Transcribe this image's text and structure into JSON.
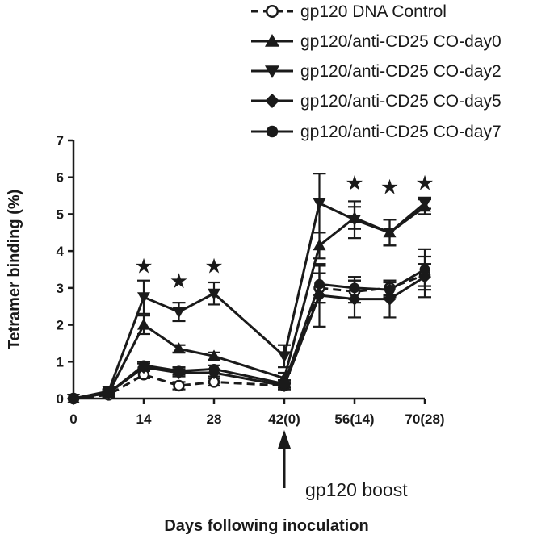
{
  "chart_data": {
    "type": "line",
    "title": "",
    "xlabel": "Days following inoculation",
    "ylabel": "Tetramer binding (%)",
    "xlim": [
      0,
      70
    ],
    "ylim": [
      0,
      7
    ],
    "x_ticks": [
      0,
      14,
      28,
      42,
      56,
      70
    ],
    "x_tick_labels": [
      "0",
      "14",
      "28",
      "42(0)",
      "56(14)",
      "70(28)"
    ],
    "y_ticks": [
      0,
      1,
      2,
      3,
      4,
      5,
      6,
      7
    ],
    "y_tick_labels": [
      "0",
      "1",
      "2",
      "3",
      "4",
      "5",
      "6",
      "7"
    ],
    "grid": false,
    "legend_position": "top-right",
    "series": [
      {
        "name": "gp120 DNA Control",
        "marker": "circle-open",
        "dashed": true,
        "x": [
          0,
          7,
          14,
          21,
          28,
          42,
          49,
          56,
          63,
          70
        ],
        "y": [
          0,
          0.1,
          0.65,
          0.35,
          0.45,
          0.35,
          3.0,
          2.9,
          3.0,
          3.35
        ],
        "err": [
          0,
          0.05,
          0.1,
          0.1,
          0.1,
          0.1,
          0.4,
          0.3,
          0.2,
          0.3
        ]
      },
      {
        "name": "gp120/anti-CD25 CO-day0",
        "marker": "triangle-up",
        "dashed": false,
        "x": [
          0,
          7,
          14,
          21,
          28,
          42,
          49,
          56,
          63,
          70
        ],
        "y": [
          0,
          0.15,
          2.0,
          1.35,
          1.15,
          0.55,
          4.15,
          4.9,
          4.5,
          5.2
        ],
        "err": [
          0,
          0.05,
          0.25,
          0.1,
          0.1,
          0.15,
          0.35,
          0.3,
          0.35,
          0.2
        ]
      },
      {
        "name": "gp120/anti-CD25 CO-day2",
        "marker": "triangle-down",
        "dashed": false,
        "x": [
          0,
          7,
          14,
          21,
          28,
          42,
          49,
          56,
          63,
          70
        ],
        "y": [
          0,
          0.2,
          2.75,
          2.35,
          2.85,
          1.15,
          5.3,
          4.85,
          4.5,
          5.3
        ],
        "err": [
          0,
          0.05,
          0.45,
          0.25,
          0.3,
          0.3,
          0.8,
          0.5,
          0.35,
          0.15
        ]
      },
      {
        "name": "gp120/anti-CD25 CO-day5",
        "marker": "diamond",
        "dashed": false,
        "x": [
          0,
          7,
          14,
          21,
          28,
          42,
          49,
          56,
          63,
          70
        ],
        "y": [
          0,
          0.15,
          0.85,
          0.7,
          0.7,
          0.35,
          2.8,
          2.7,
          2.7,
          3.3
        ],
        "err": [
          0,
          0.05,
          0.1,
          0.1,
          0.1,
          0.1,
          0.85,
          0.5,
          0.5,
          0.55
        ]
      },
      {
        "name": "gp120/anti-CD25 CO-day7",
        "marker": "circle-filled",
        "dashed": false,
        "x": [
          0,
          7,
          14,
          21,
          28,
          42,
          49,
          56,
          63,
          70
        ],
        "y": [
          0,
          0.15,
          0.9,
          0.75,
          0.8,
          0.4,
          3.1,
          3.0,
          2.95,
          3.5
        ],
        "err": [
          0,
          0.05,
          0.1,
          0.1,
          0.1,
          0.1,
          0.5,
          0.3,
          0.2,
          0.55
        ]
      }
    ],
    "significance_marks": [
      {
        "x": 14,
        "y": 3.4,
        "label": "★"
      },
      {
        "x": 21,
        "y": 3.0,
        "label": "★"
      },
      {
        "x": 28,
        "y": 3.4,
        "label": "★"
      },
      {
        "x": 56,
        "y": 5.65,
        "label": "★"
      },
      {
        "x": 63,
        "y": 5.55,
        "label": "★"
      },
      {
        "x": 70,
        "y": 5.65,
        "label": "★"
      }
    ],
    "annotations": [
      {
        "text": "gp120 boost",
        "x": 42
      }
    ]
  }
}
